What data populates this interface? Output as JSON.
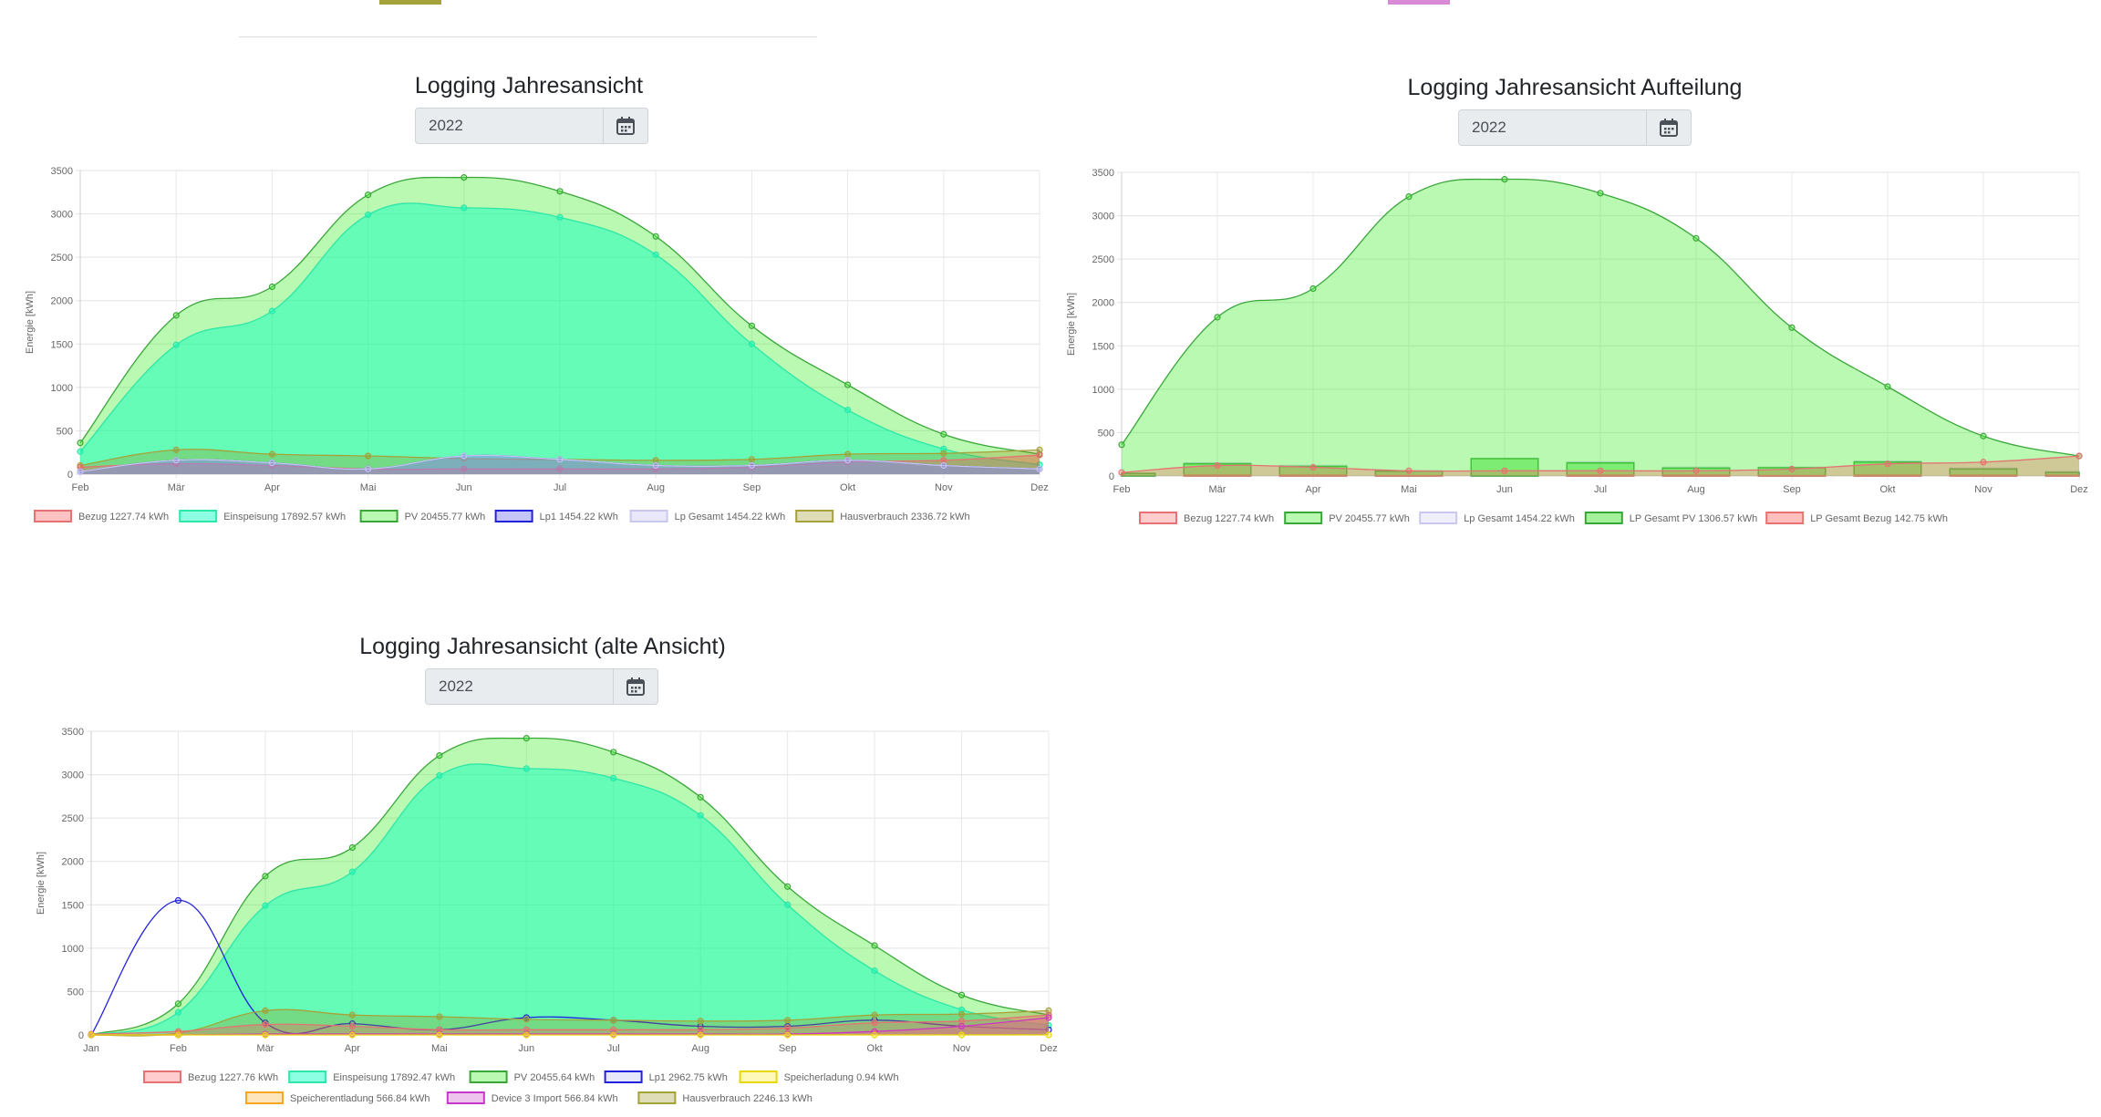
{
  "colors": {
    "top_swatch_left": "#a6a23a",
    "top_swatch_right": "#d98ad6"
  },
  "panels": [
    {
      "title": "Logging Jahresansicht",
      "year": "2022",
      "ylabel": "Energie [kWh]",
      "calendar_icon": "calendar-icon"
    },
    {
      "title": "Logging Jahresansicht Aufteilung",
      "year": "2022",
      "ylabel": "Energie [kWh]",
      "calendar_icon": "calendar-icon"
    },
    {
      "title": "Logging Jahresansicht (alte Ansicht)",
      "year": "2022",
      "ylabel": "Energie [kWh]",
      "calendar_icon": "calendar-icon"
    }
  ],
  "chart_data": [
    {
      "type": "area",
      "categories": [
        "Feb",
        "Mär",
        "Apr",
        "Mai",
        "Jun",
        "Jul",
        "Aug",
        "Sep",
        "Okt",
        "Nov",
        "Dez"
      ],
      "ylim": [
        0,
        3500
      ],
      "yticks": [
        0,
        500,
        1000,
        1500,
        2000,
        2500,
        3000,
        3500
      ],
      "ylabel": "Energie [kWh]",
      "grid": true,
      "legend_position": "bottom",
      "series": [
        {
          "name": "Bezug 1227.74 kWh",
          "kind": "area",
          "values": [
            80,
            120,
            100,
            60,
            60,
            60,
            60,
            80,
            140,
            160,
            220
          ],
          "fill": "rgba(255,80,80,0.35)",
          "stroke": "#e57373"
        },
        {
          "name": "Einspeisung 17892.57 kWh",
          "kind": "area",
          "values": [
            260,
            1490,
            1880,
            2990,
            3070,
            2960,
            2530,
            1500,
            740,
            290,
            110
          ],
          "fill": "rgba(0,255,190,0.45)",
          "stroke": "#2ee6a8"
        },
        {
          "name": "PV 20455.77 kWh",
          "kind": "area",
          "values": [
            360,
            1830,
            2160,
            3220,
            3420,
            3260,
            2740,
            1710,
            1030,
            460,
            230
          ],
          "fill": "rgba(80,240,60,0.40)",
          "stroke": "#3aa63a"
        },
        {
          "name": "Lp1 1454.22 kWh",
          "kind": "area",
          "values": [
            30,
            160,
            130,
            60,
            210,
            170,
            100,
            100,
            160,
            100,
            60
          ],
          "fill": "rgba(20,20,230,0.25)",
          "stroke": "#2222dd"
        },
        {
          "name": "Lp Gesamt 1454.22 kWh",
          "kind": "area",
          "values": [
            30,
            160,
            130,
            60,
            210,
            170,
            100,
            100,
            160,
            100,
            60
          ],
          "fill": "rgba(190,190,240,0.35)",
          "stroke": "#c8c8ee"
        },
        {
          "name": "Hausverbrauch 2336.72 kWh",
          "kind": "area",
          "values": [
            100,
            280,
            230,
            210,
            180,
            170,
            160,
            170,
            230,
            240,
            280
          ],
          "fill": "rgba(150,140,20,0.30)",
          "stroke": "#a6a23a"
        }
      ]
    },
    {
      "type": "bar",
      "categories": [
        "Feb",
        "Mär",
        "Apr",
        "Mai",
        "Jun",
        "Jul",
        "Aug",
        "Sep",
        "Okt",
        "Nov",
        "Dez"
      ],
      "ylim": [
        0,
        3500
      ],
      "yticks": [
        0,
        500,
        1000,
        1500,
        2000,
        2500,
        3000,
        3500
      ],
      "ylabel": "Energie [kWh]",
      "grid": true,
      "legend_position": "bottom",
      "series": [
        {
          "name": "Bezug 1227.74 kWh",
          "kind": "area",
          "values": [
            40,
            120,
            100,
            60,
            60,
            60,
            60,
            80,
            140,
            160,
            230
          ],
          "fill": "rgba(255,90,90,0.30)",
          "stroke": "#e57373"
        },
        {
          "name": "PV 20455.77 kWh",
          "kind": "area",
          "values": [
            360,
            1830,
            2160,
            3220,
            3420,
            3260,
            2740,
            1710,
            1030,
            460,
            230
          ],
          "fill": "rgba(80,240,60,0.40)",
          "stroke": "#3aa63a"
        },
        {
          "name": "Lp Gesamt 1454.22 kWh",
          "kind": "bar",
          "values": [
            30,
            150,
            120,
            60,
            200,
            160,
            100,
            100,
            170,
            90,
            50
          ],
          "fill": "rgba(200,200,245,0.30)",
          "stroke": "#c8c8ee"
        },
        {
          "name": "LP Gesamt PV 1306.57 kWh",
          "kind": "bar",
          "values": [
            30,
            140,
            110,
            55,
            200,
            150,
            90,
            95,
            160,
            80,
            40
          ],
          "fill": "rgba(90,230,70,0.55)",
          "stroke": "#3aa63a"
        },
        {
          "name": "LP Gesamt Bezug 142.75 kWh",
          "kind": "bar",
          "values": [
            0,
            10,
            10,
            5,
            0,
            10,
            10,
            5,
            10,
            10,
            10
          ],
          "fill": "rgba(255,110,110,0.45)",
          "stroke": "#e57373"
        }
      ]
    },
    {
      "type": "area",
      "categories": [
        "Jan",
        "Feb",
        "Mär",
        "Apr",
        "Mai",
        "Jun",
        "Jul",
        "Aug",
        "Sep",
        "Okt",
        "Nov",
        "Dez"
      ],
      "ylim": [
        0,
        3500
      ],
      "yticks": [
        0,
        500,
        1000,
        1500,
        2000,
        2500,
        3000,
        3500
      ],
      "ylabel": "Energie [kWh]",
      "grid": true,
      "legend_position": "bottom",
      "series": [
        {
          "name": "Bezug 1227.76 kWh",
          "kind": "area",
          "values": [
            10,
            40,
            120,
            100,
            60,
            60,
            60,
            60,
            80,
            140,
            160,
            230
          ],
          "fill": "rgba(255,90,90,0.30)",
          "stroke": "#e57373"
        },
        {
          "name": "Einspeisung 17892.47 kWh",
          "kind": "area",
          "values": [
            0,
            260,
            1490,
            1880,
            2990,
            3070,
            2960,
            2530,
            1500,
            740,
            290,
            110
          ],
          "fill": "rgba(0,255,190,0.45)",
          "stroke": "#2ee6a8"
        },
        {
          "name": "PV 20455.64 kWh",
          "kind": "area",
          "values": [
            0,
            360,
            1830,
            2160,
            3220,
            3420,
            3260,
            2740,
            1710,
            1030,
            460,
            230
          ],
          "fill": "rgba(80,240,60,0.40)",
          "stroke": "#3aa63a"
        },
        {
          "name": "Lp1 2962.75 kWh",
          "kind": "line",
          "values": [
            0,
            1550,
            140,
            130,
            60,
            200,
            170,
            100,
            100,
            170,
            100,
            60
          ],
          "fill": "rgba(20,20,230,0.10)",
          "stroke": "#2222dd"
        },
        {
          "name": "Speicherladung 0.94 kWh",
          "kind": "area",
          "values": [
            0,
            0,
            0,
            0,
            0,
            0,
            0,
            0,
            0,
            0,
            0,
            0
          ],
          "fill": "rgba(255,240,80,0.40)",
          "stroke": "#e8d800"
        },
        {
          "name": "Speicherentladung 566.84 kWh",
          "kind": "area",
          "values": [
            0,
            0,
            10,
            10,
            10,
            10,
            10,
            10,
            10,
            40,
            100,
            200
          ],
          "fill": "rgba(255,180,60,0.35)",
          "stroke": "#f5a623"
        },
        {
          "name": "Device 3 Import 566.84 kWh",
          "kind": "area",
          "values": [
            0,
            0,
            10,
            10,
            10,
            10,
            10,
            10,
            10,
            40,
            100,
            200
          ],
          "fill": "rgba(200,60,200,0.30)",
          "stroke": "#c838c8"
        },
        {
          "name": "Hausverbrauch 2246.13 kWh",
          "kind": "area",
          "values": [
            0,
            20,
            280,
            230,
            210,
            180,
            170,
            160,
            170,
            230,
            240,
            280
          ],
          "fill": "rgba(150,140,20,0.30)",
          "stroke": "#a6a23a"
        }
      ]
    }
  ]
}
